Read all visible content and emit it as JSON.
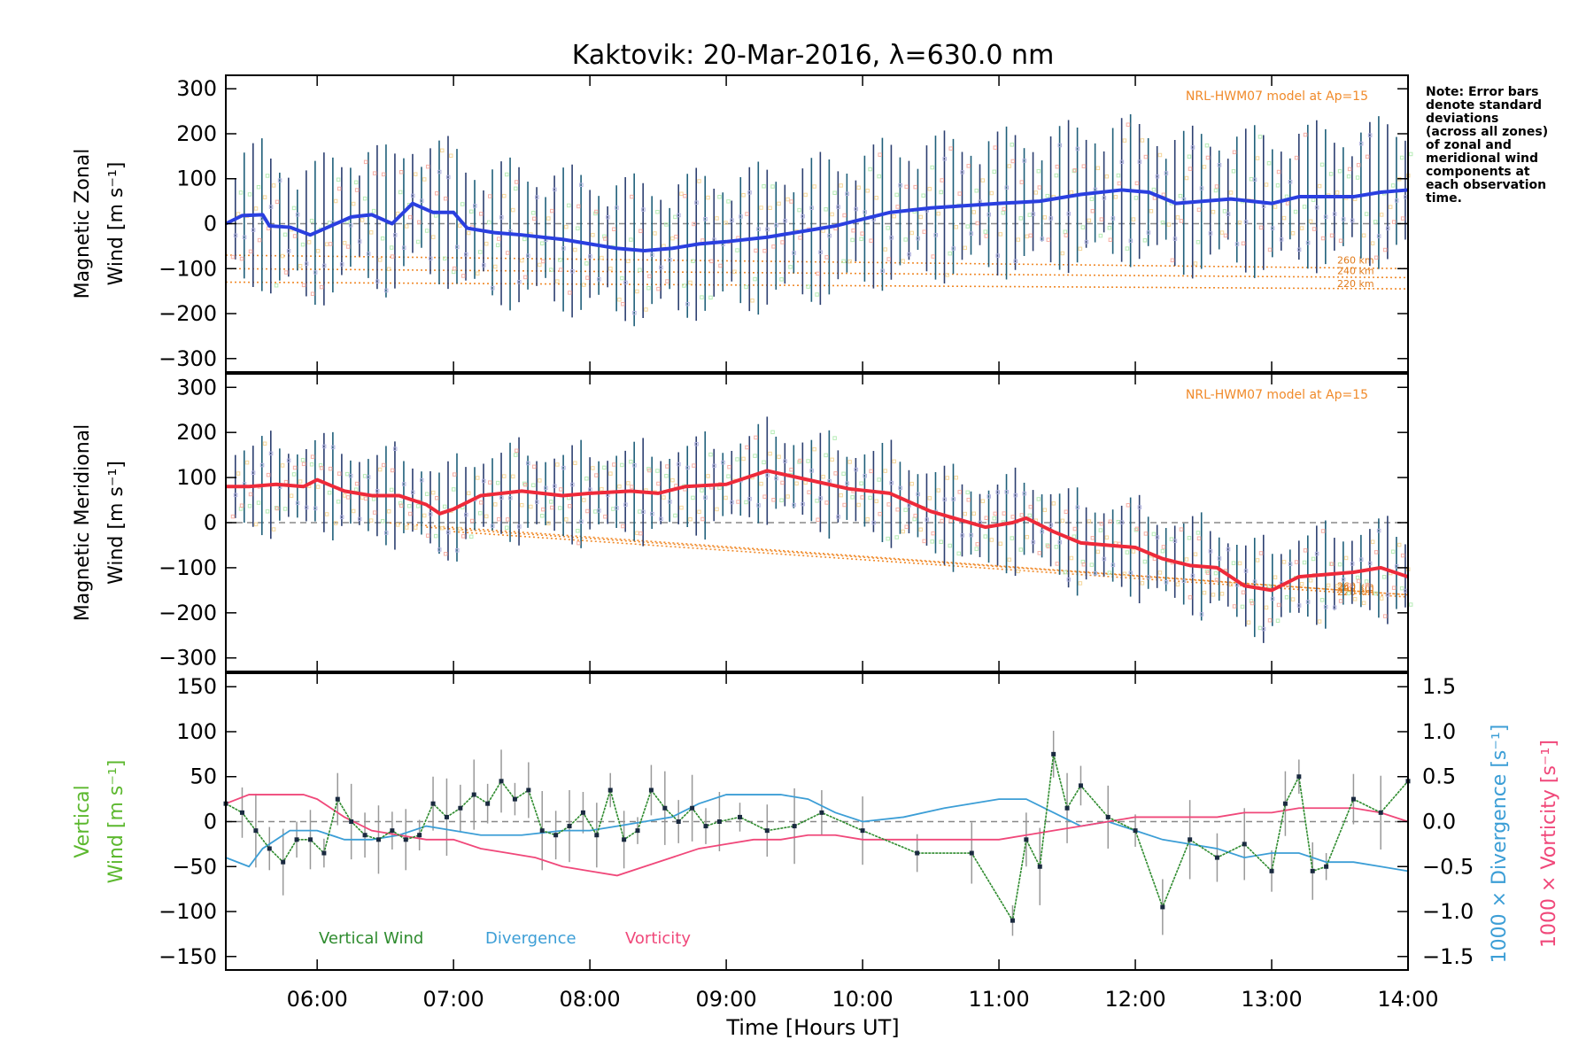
{
  "chart_data": {
    "title": "Kaktovik: 20-Mar-2016, λ=630.0 nm",
    "xlabel": "Time [Hours UT]",
    "xlim": [
      5.33,
      14.0
    ],
    "xticks": [
      "06:00",
      "07:00",
      "08:00",
      "09:00",
      "10:00",
      "11:00",
      "12:00",
      "13:00",
      "14:00"
    ],
    "xtick_values": [
      6,
      7,
      8,
      9,
      10,
      11,
      12,
      13,
      14
    ],
    "note": [
      "Note: Error bars",
      "denote standard",
      "deviations",
      "(across all zones)",
      "of zonal and",
      "meridional wind",
      "components at",
      "each observation",
      "time."
    ],
    "panels": [
      {
        "type": "line",
        "ylabel_lines": [
          "Magnetic Zonal",
          "Wind [m s⁻¹]"
        ],
        "ylim": [
          -330,
          330
        ],
        "yticks": [
          "300",
          "200",
          "100",
          "0",
          "−100",
          "−200",
          "−300"
        ],
        "ytick_values": [
          300,
          200,
          100,
          0,
          -100,
          -200,
          -300
        ],
        "model_label": "NRL-HWM07 model at Ap=15",
        "model_altitudes": [
          "260 km",
          "240 km",
          "220 km"
        ],
        "color": "#2a3fe0",
        "series": [
          {
            "x": [
              5.33,
              5.45,
              5.6,
              5.65,
              5.8,
              5.95,
              6.1,
              6.25,
              6.4,
              6.55,
              6.7,
              6.85,
              7.0,
              7.1,
              7.3,
              7.5,
              7.8,
              8.0,
              8.2,
              8.4,
              8.6,
              8.8,
              9.0,
              9.3,
              9.6,
              9.8,
              10.0,
              10.2,
              10.5,
              11.0,
              11.3,
              11.6,
              11.9,
              12.1,
              12.3,
              12.5,
              12.7,
              13.0,
              13.2,
              13.4,
              13.6,
              13.8,
              14.0
            ],
            "y": [
              0,
              18,
              20,
              -5,
              -8,
              -25,
              -5,
              15,
              20,
              0,
              45,
              25,
              25,
              -10,
              -20,
              -25,
              -35,
              -45,
              -55,
              -60,
              -55,
              -45,
              -40,
              -30,
              -15,
              -5,
              10,
              25,
              35,
              45,
              50,
              65,
              75,
              70,
              45,
              50,
              55,
              45,
              60,
              60,
              60,
              70,
              75
            ]
          }
        ],
        "model": [
          {
            "name": "260 km",
            "x0": 5.33,
            "y0": -70,
            "y1": -100
          },
          {
            "name": "240 km",
            "x0": 5.33,
            "y0": -100,
            "y1": -120
          },
          {
            "name": "220 km",
            "x0": 5.33,
            "y0": -130,
            "y1": -145
          }
        ]
      },
      {
        "type": "line",
        "ylabel_lines": [
          "Magnetic Meridional",
          "Wind [m s⁻¹]"
        ],
        "ylim": [
          -330,
          330
        ],
        "yticks": [
          "300",
          "200",
          "100",
          "0",
          "−100",
          "−200",
          "−300"
        ],
        "ytick_values": [
          300,
          200,
          100,
          0,
          -100,
          -200,
          -300
        ],
        "model_label": "NRL-HWM07 model at Ap=15",
        "model_altitudes": [
          "260 km",
          "240 km",
          "220 km"
        ],
        "color": "#ee2a3a",
        "series": [
          {
            "x": [
              5.33,
              5.5,
              5.7,
              5.9,
              6.0,
              6.2,
              6.4,
              6.6,
              6.8,
              6.9,
              7.0,
              7.2,
              7.5,
              7.8,
              8.0,
              8.3,
              8.5,
              8.7,
              9.0,
              9.3,
              9.6,
              9.9,
              10.2,
              10.5,
              10.9,
              11.1,
              11.2,
              11.4,
              11.6,
              11.8,
              12.0,
              12.2,
              12.4,
              12.6,
              12.8,
              13.0,
              13.2,
              13.4,
              13.6,
              13.8,
              14.0
            ],
            "y": [
              80,
              80,
              85,
              80,
              95,
              70,
              60,
              60,
              40,
              20,
              30,
              60,
              70,
              60,
              65,
              70,
              65,
              80,
              85,
              115,
              95,
              75,
              65,
              25,
              -10,
              0,
              10,
              -20,
              -45,
              -50,
              -55,
              -80,
              -95,
              -100,
              -140,
              -150,
              -120,
              -115,
              -110,
              -100,
              -120
            ]
          }
        ],
        "model": [
          {
            "name": "260 km",
            "x0": 6.5,
            "y0": 0,
            "y1": -160
          },
          {
            "name": "240 km",
            "x0": 6.8,
            "y0": -10,
            "y1": -160
          },
          {
            "name": "220 km",
            "x0": 7.0,
            "y0": -20,
            "y1": -165
          }
        ]
      },
      {
        "type": "line",
        "ylabel_lines": [
          "Vertical",
          "Wind [m s⁻¹]"
        ],
        "ylim": [
          -165,
          165
        ],
        "yticks": [
          "150",
          "100",
          "50",
          "0",
          "−50",
          "−100",
          "−150"
        ],
        "ytick_values": [
          150,
          100,
          50,
          0,
          -50,
          -100,
          -150
        ],
        "right_axis_1": "1000 × Divergence [s⁻¹]",
        "right_axis_2": "1000 × Vorticity [s⁻¹]",
        "right_ylim": [
          -1.65,
          1.65
        ],
        "right_yticks": [
          "1.5",
          "1.0",
          "0.5",
          "0.0",
          "−0.5",
          "−1.0",
          "−1.5"
        ],
        "right_ytick_values": [
          1.5,
          1.0,
          0.5,
          0.0,
          -0.5,
          -1.0,
          -1.5
        ],
        "legend": [
          "Vertical Wind",
          "Divergence",
          "Vorticity"
        ],
        "series": [
          {
            "name": "Vertical Wind",
            "color": "#2e8b2e",
            "x": [
              5.33,
              5.45,
              5.55,
              5.65,
              5.75,
              5.85,
              5.95,
              6.05,
              6.15,
              6.25,
              6.35,
              6.45,
              6.55,
              6.65,
              6.75,
              6.85,
              6.95,
              7.05,
              7.15,
              7.25,
              7.35,
              7.45,
              7.55,
              7.65,
              7.75,
              7.85,
              7.95,
              8.05,
              8.15,
              8.25,
              8.35,
              8.45,
              8.55,
              8.65,
              8.75,
              8.85,
              8.95,
              9.1,
              9.3,
              9.5,
              9.7,
              10.0,
              10.4,
              10.8,
              11.1,
              11.2,
              11.3,
              11.4,
              11.5,
              11.6,
              11.8,
              12.0,
              12.2,
              12.4,
              12.6,
              12.8,
              13.0,
              13.1,
              13.2,
              13.3,
              13.4,
              13.6,
              13.8,
              14.0
            ],
            "y": [
              20,
              10,
              -10,
              -30,
              -45,
              -20,
              -20,
              -35,
              25,
              0,
              -15,
              -20,
              -10,
              -20,
              -15,
              20,
              5,
              15,
              30,
              20,
              45,
              25,
              35,
              -10,
              -15,
              -5,
              10,
              -15,
              35,
              -20,
              -10,
              35,
              15,
              0,
              15,
              -5,
              0,
              5,
              -10,
              -5,
              10,
              -10,
              -35,
              -35,
              -110,
              -20,
              -50,
              75,
              15,
              40,
              5,
              -10,
              -95,
              -20,
              -40,
              -25,
              -55,
              20,
              50,
              -55,
              -50,
              25,
              10,
              45
            ]
          },
          {
            "name": "Divergence",
            "color": "#3c9ed6",
            "x": [
              5.33,
              5.5,
              5.6,
              5.8,
              6.0,
              6.2,
              6.4,
              6.6,
              6.8,
              7.0,
              7.2,
              7.5,
              7.8,
              8.0,
              8.2,
              8.4,
              8.6,
              8.8,
              9.0,
              9.2,
              9.4,
              9.6,
              9.8,
              10.0,
              10.3,
              10.6,
              11.0,
              11.2,
              11.4,
              11.6,
              11.8,
              12.0,
              12.2,
              12.4,
              12.6,
              12.8,
              13.0,
              13.2,
              13.4,
              13.6,
              13.8,
              14.0
            ],
            "y": [
              -0.4,
              -0.5,
              -0.3,
              -0.1,
              -0.1,
              -0.2,
              -0.2,
              -0.15,
              -0.05,
              -0.1,
              -0.15,
              -0.15,
              -0.1,
              -0.1,
              -0.05,
              0.0,
              0.05,
              0.2,
              0.3,
              0.3,
              0.3,
              0.25,
              0.1,
              0.0,
              0.05,
              0.15,
              0.25,
              0.25,
              0.1,
              -0.05,
              0.0,
              -0.1,
              -0.2,
              -0.25,
              -0.3,
              -0.4,
              -0.35,
              -0.35,
              -0.45,
              -0.45,
              -0.5,
              -0.55
            ]
          },
          {
            "name": "Vorticity",
            "color": "#f0487a",
            "x": [
              5.33,
              5.5,
              5.7,
              5.9,
              6.0,
              6.2,
              6.4,
              6.6,
              6.8,
              7.0,
              7.2,
              7.4,
              7.6,
              7.8,
              8.0,
              8.2,
              8.4,
              8.6,
              8.8,
              9.0,
              9.2,
              9.4,
              9.6,
              9.8,
              10.0,
              10.3,
              10.6,
              11.0,
              11.2,
              11.4,
              11.6,
              11.8,
              12.0,
              12.2,
              12.4,
              12.6,
              12.8,
              13.0,
              13.2,
              13.4,
              13.6,
              13.8,
              14.0
            ],
            "y": [
              0.2,
              0.3,
              0.3,
              0.3,
              0.25,
              0.05,
              -0.1,
              -0.15,
              -0.2,
              -0.2,
              -0.3,
              -0.35,
              -0.4,
              -0.5,
              -0.55,
              -0.6,
              -0.5,
              -0.4,
              -0.3,
              -0.25,
              -0.2,
              -0.2,
              -0.15,
              -0.15,
              -0.2,
              -0.2,
              -0.2,
              -0.2,
              -0.15,
              -0.1,
              -0.05,
              0.0,
              0.05,
              0.05,
              0.05,
              0.05,
              0.1,
              0.1,
              0.15,
              0.15,
              0.15,
              0.1,
              0.0
            ]
          }
        ]
      }
    ]
  }
}
